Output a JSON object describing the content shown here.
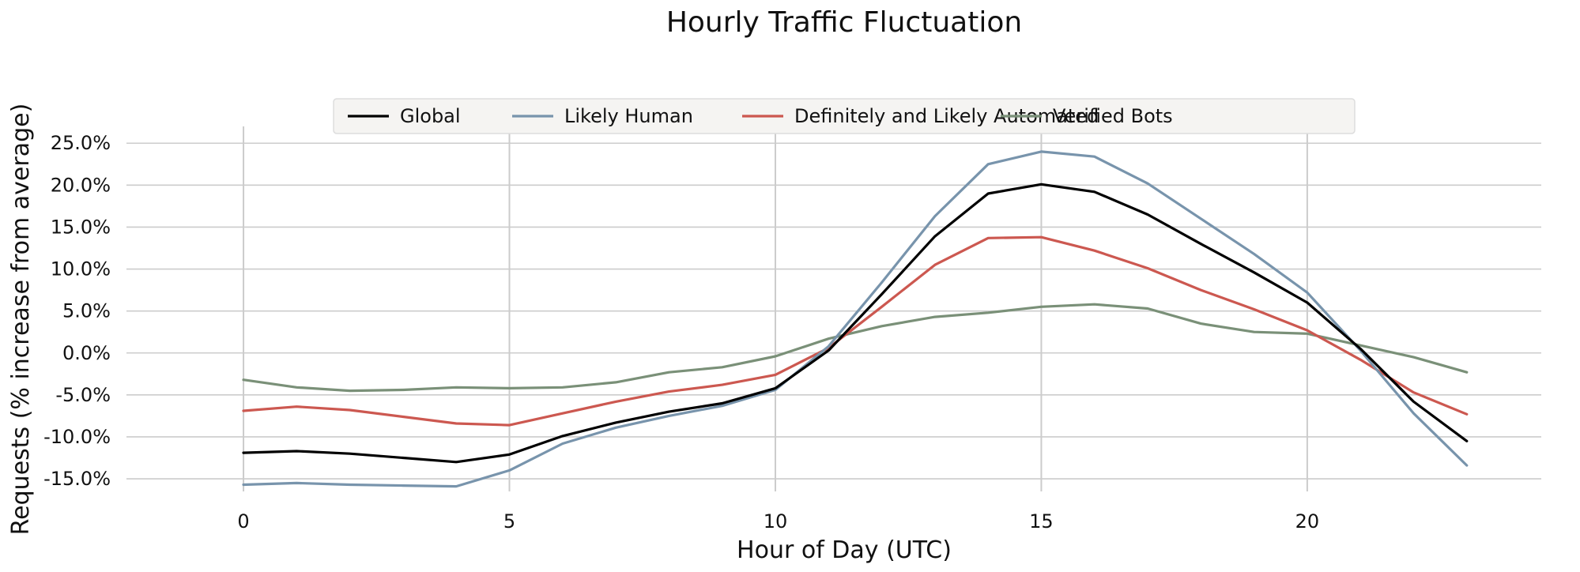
{
  "chart_data": {
    "type": "line",
    "title": "Hourly Traffic Fluctuation",
    "xlabel": "Hour of Day (UTC)",
    "ylabel": "Requests (% increase from average)",
    "x": [
      0,
      1,
      2,
      3,
      4,
      5,
      6,
      7,
      8,
      9,
      10,
      11,
      12,
      13,
      14,
      15,
      16,
      17,
      18,
      19,
      20,
      21,
      22,
      23
    ],
    "xlim": [
      -2.2,
      24.4
    ],
    "ylim": [
      -16.5,
      27
    ],
    "xticks": [
      0,
      5,
      10,
      15,
      20
    ],
    "xtick_labels": [
      "0",
      "5",
      "10",
      "15",
      "20"
    ],
    "yticks": [
      -15,
      -10,
      -5,
      0,
      5,
      10,
      15,
      20,
      25
    ],
    "ytick_labels": [
      "-15.0%",
      "-10.0%",
      "-5.0%",
      "0.0%",
      "5.0%",
      "10.0%",
      "15.0%",
      "20.0%",
      "25.0%"
    ],
    "grid": true,
    "legend_position": "top-center",
    "series": [
      {
        "name": "Global",
        "color": "#000000",
        "values": [
          -11.9,
          -11.7,
          -12.0,
          -12.5,
          -13.0,
          -12.1,
          -9.9,
          -8.3,
          -7.0,
          -6.0,
          -4.2,
          0.3,
          7.0,
          13.9,
          19.0,
          20.1,
          19.2,
          16.5,
          13.0,
          9.6,
          6.0,
          0.5,
          -5.8,
          -10.5
        ]
      },
      {
        "name": "Likely Human",
        "color": "#7894ac",
        "values": [
          -15.7,
          -15.5,
          -15.7,
          -15.8,
          -15.9,
          -14.0,
          -10.8,
          -8.9,
          -7.5,
          -6.3,
          -4.4,
          0.8,
          8.4,
          16.3,
          22.5,
          24.0,
          23.4,
          20.2,
          16.0,
          11.8,
          7.2,
          0.3,
          -7.2,
          -13.4
        ]
      },
      {
        "name": "Definitely and Likely Automated",
        "color": "#cc5850",
        "values": [
          -6.9,
          -6.4,
          -6.8,
          -7.6,
          -8.4,
          -8.6,
          -7.2,
          -5.8,
          -4.6,
          -3.8,
          -2.6,
          0.6,
          5.5,
          10.5,
          13.7,
          13.8,
          12.2,
          10.1,
          7.5,
          5.2,
          2.7,
          -0.8,
          -4.7,
          -7.3
        ]
      },
      {
        "name": "Verified Bots",
        "color": "#7a9078",
        "values": [
          -3.2,
          -4.1,
          -4.5,
          -4.4,
          -4.1,
          -4.2,
          -4.1,
          -3.5,
          -2.3,
          -1.7,
          -0.4,
          1.7,
          3.2,
          4.3,
          4.8,
          5.5,
          5.8,
          5.3,
          3.5,
          2.5,
          2.3,
          0.9,
          -0.5,
          -2.3
        ]
      }
    ]
  }
}
